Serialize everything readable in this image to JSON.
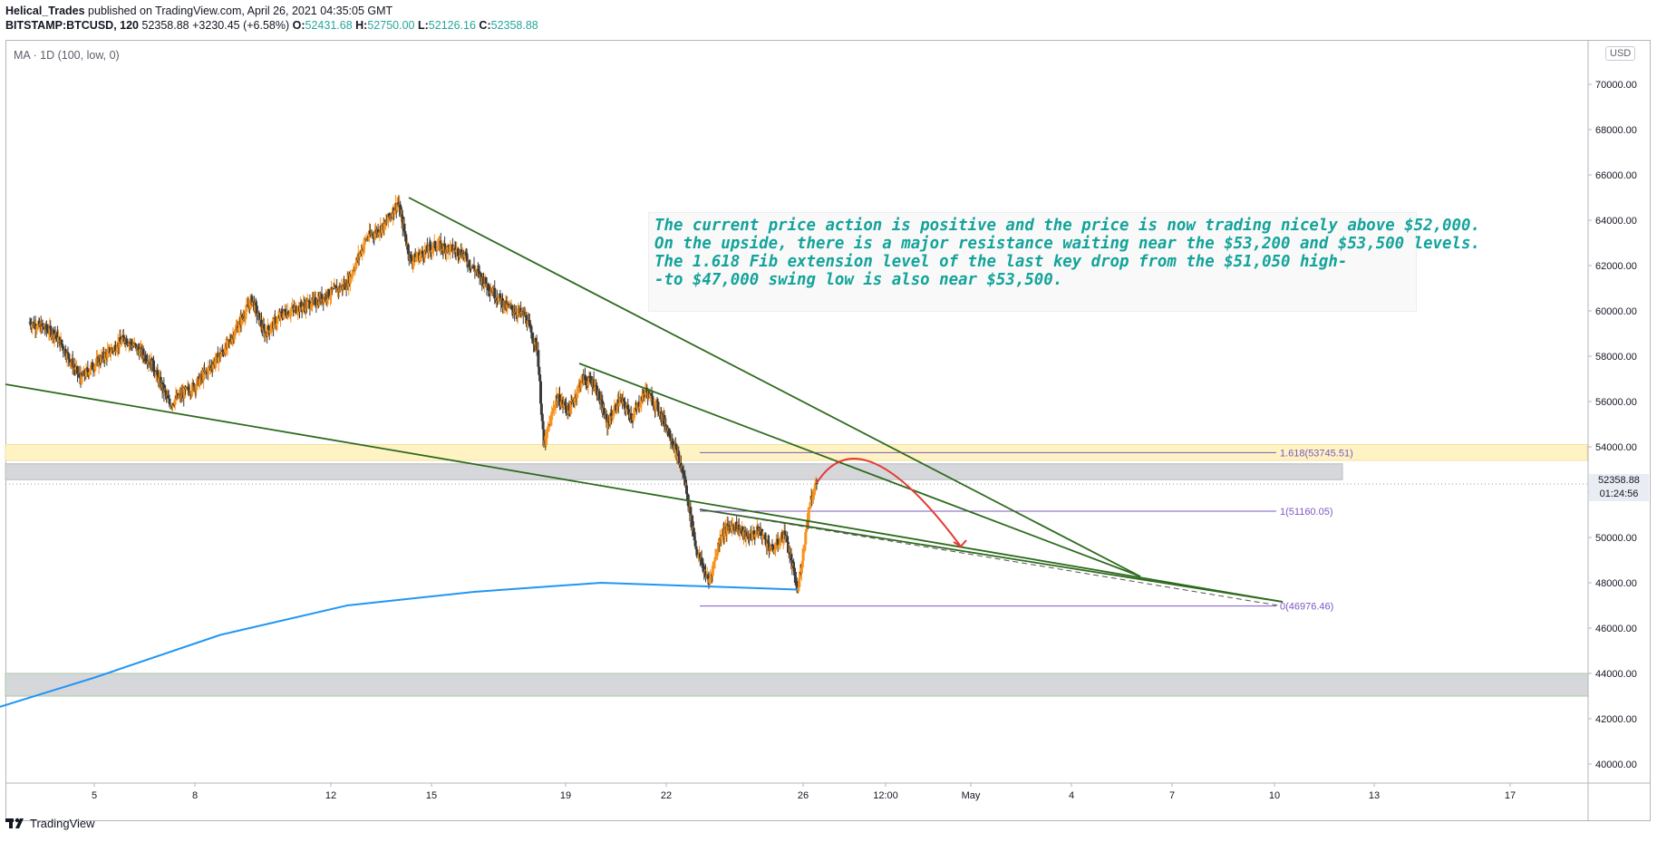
{
  "header": {
    "author": "Helical_Trades",
    "published": "published on TradingView.com, April 26, 2021 04:35:05 GMT",
    "symbol": "BITSTAMP:BTCUSD, 120",
    "last": "52358.88",
    "change": "+3230.45 (+6.58%)",
    "o_label": "O:",
    "o": "52431.68",
    "h_label": "H:",
    "h": "52750.00",
    "l_label": "L:",
    "l": "52126.16",
    "c_label": "C:",
    "c": "52358.88"
  },
  "indicator": "MA · 1D (100, low, 0)",
  "currency": "USD",
  "annotation": [
    "The current price action is positive and the price is now trading nicely above $52,000.",
    "On the upside, there is a major resistance waiting near the $53,200 and $53,500 levels.",
    "The 1.618 Fib extension level of the last key drop from the $51,050 high-",
    "-to $47,000 swing low is also near $53,500."
  ],
  "price_tag": {
    "price": "52358.88",
    "countdown": "01:24:56"
  },
  "logo": "TradingView",
  "colors": {
    "up": "#f7931e",
    "down": "#3b3b3b",
    "trendline": "#2e6b1e",
    "ma": "#2196f3",
    "fib": "#7e57c2",
    "arrow": "#e53935",
    "zone_yellow": "#fff3c4",
    "zone_grey": "#d6d7da",
    "annotation_text": "#13a39a"
  },
  "chart_data": {
    "type": "candlestick",
    "symbol": "BITSTAMP:BTCUSD",
    "timeframe": "120",
    "y_ticks": [
      "70000.00",
      "68000.00",
      "66000.00",
      "64000.00",
      "62000.00",
      "60000.00",
      "58000.00",
      "56000.00",
      "54000.00",
      "52000.00",
      "50000.00",
      "48000.00",
      "46000.00",
      "44000.00",
      "42000.00",
      "40000.00"
    ],
    "ylim": [
      39000,
      71500
    ],
    "x_ticks": [
      "5",
      "8",
      "12",
      "15",
      "19",
      "22",
      "26",
      "12:00",
      "May",
      "4",
      "7",
      "10",
      "13",
      "17"
    ],
    "price_path": [
      [
        0,
        59500
      ],
      [
        4,
        59000
      ],
      [
        8,
        57000
      ],
      [
        10,
        57600
      ],
      [
        15,
        58800
      ],
      [
        19,
        57800
      ],
      [
        22,
        55900
      ],
      [
        26,
        56700
      ],
      [
        31,
        58400
      ],
      [
        35,
        60500
      ],
      [
        37,
        59000
      ],
      [
        40,
        59900
      ],
      [
        45,
        60400
      ],
      [
        50,
        61200
      ],
      [
        53,
        63200
      ],
      [
        56,
        63800
      ],
      [
        58,
        64800
      ],
      [
        60,
        62200
      ],
      [
        64,
        62900
      ],
      [
        68,
        62600
      ],
      [
        71,
        61500
      ],
      [
        75,
        60200
      ],
      [
        78,
        59800
      ],
      [
        80,
        58300
      ],
      [
        81,
        54000
      ],
      [
        83,
        56200
      ],
      [
        85,
        55600
      ],
      [
        87,
        57000
      ],
      [
        89,
        56800
      ],
      [
        91,
        55000
      ],
      [
        93,
        56100
      ],
      [
        95,
        55300
      ],
      [
        97,
        56500
      ],
      [
        99,
        55700
      ],
      [
        101,
        54500
      ],
      [
        103,
        52800
      ],
      [
        105,
        49500
      ],
      [
        107,
        48000
      ],
      [
        109,
        50200
      ],
      [
        111,
        50600
      ],
      [
        113,
        50000
      ],
      [
        115,
        50300
      ],
      [
        117,
        49400
      ],
      [
        119,
        50200
      ],
      [
        121,
        47600
      ],
      [
        123,
        51700
      ],
      [
        124,
        52359
      ]
    ],
    "ma_100_1d_low": [
      [
        -12,
        41900
      ],
      [
        10,
        43800
      ],
      [
        30,
        45700
      ],
      [
        50,
        47000
      ],
      [
        70,
        47600
      ],
      [
        90,
        48000
      ],
      [
        121,
        47700
      ]
    ],
    "fib_levels": [
      {
        "ratio": "1.618",
        "label": "1.618(53745.51)",
        "price": 53745.51
      },
      {
        "ratio": "1",
        "label": "1(51160.05)",
        "price": 51160.05
      },
      {
        "ratio": "0",
        "label": "0(46976.46)",
        "price": 46976.46
      }
    ],
    "resistance_zones": [
      {
        "low": 53400,
        "high": 54100,
        "color": "yellow"
      },
      {
        "low": 52550,
        "high": 53250,
        "color": "grey"
      }
    ],
    "support_zone": {
      "low": 43000,
      "high": 44000
    },
    "projection": {
      "from": 52400,
      "peak": 53800,
      "to": 49600
    },
    "last_price": 52358.88
  }
}
